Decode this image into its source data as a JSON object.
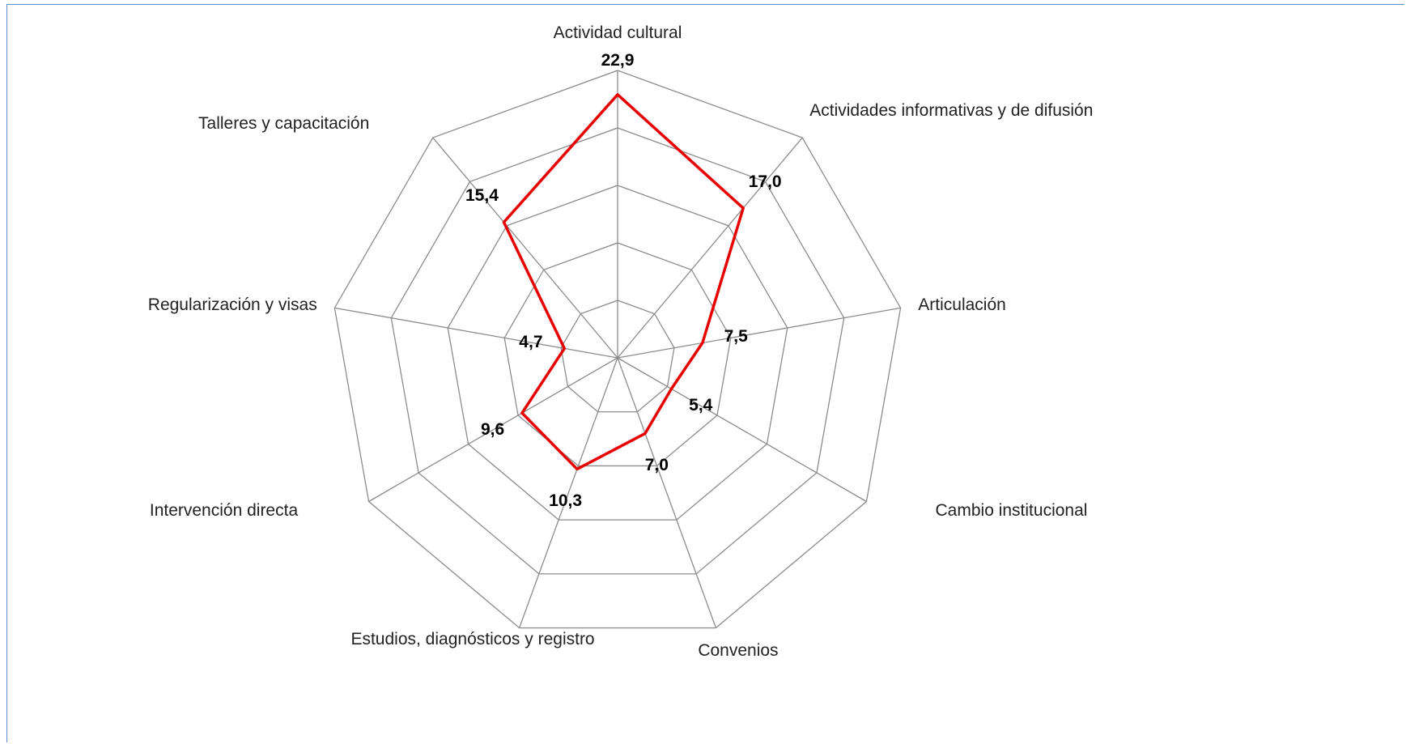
{
  "chart_data": {
    "type": "radar",
    "categories": [
      "Actividad cultural",
      "Actividades informativas y de difusión",
      "Articulación",
      "Cambio institucional",
      "Convenios",
      "Estudios, diagnósticos y registro",
      "Intervención directa",
      "Regularización y visas",
      "Talleres y capacitación"
    ],
    "series": [
      {
        "color": "#e60000",
        "values": [
          22.9,
          17.0,
          7.5,
          5.4,
          7.0,
          10.3,
          9.6,
          4.7,
          15.4
        ],
        "value_labels": [
          "22,9",
          "17,0",
          "7,5",
          "5,4",
          "7,0",
          "10,3",
          "9,6",
          "4,7",
          "15,4"
        ]
      }
    ],
    "rlim": [
      0,
      25
    ],
    "rticks": [
      0,
      5,
      10,
      15,
      20,
      25
    ],
    "grid": true
  }
}
